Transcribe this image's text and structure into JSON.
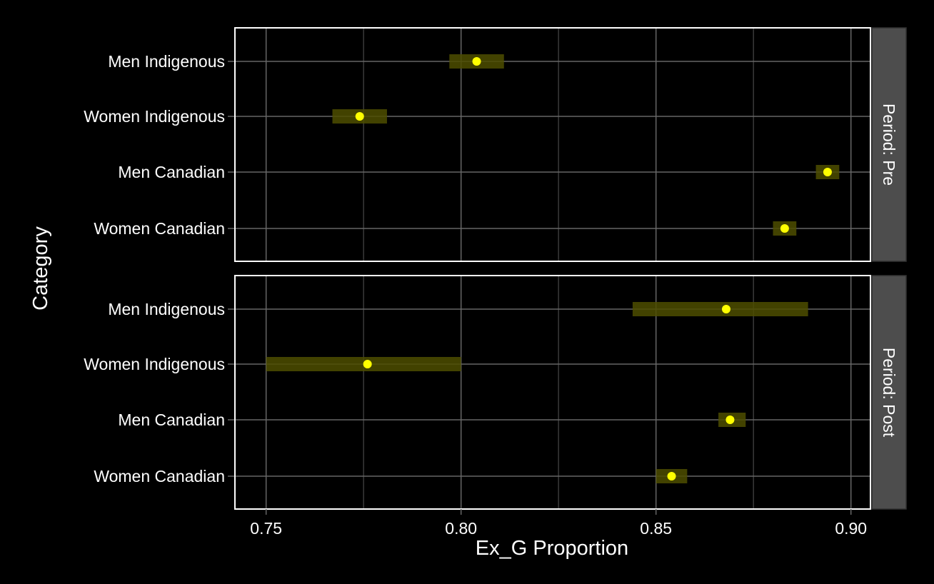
{
  "chart_data": {
    "type": "dot-interval",
    "xlabel": "Ex_G Proportion",
    "ylabel": "Category",
    "xlim": [
      0.742,
      0.905
    ],
    "x_ticks": [
      "0.75",
      "0.80",
      "0.85",
      "0.90"
    ],
    "x_tick_values": [
      0.75,
      0.8,
      0.85,
      0.9
    ],
    "x_minor_gridlines": [
      0.775,
      0.825,
      0.875
    ],
    "categories": [
      "Men Indigenous",
      "Women Indigenous",
      "Men Canadian",
      "Women Canadian"
    ],
    "grid": true,
    "colors": {
      "background": "#000000",
      "panel_border": "#ffffff",
      "grid": "#666666",
      "point": "#ffff00",
      "interval": "#4d4d00",
      "strip": "#4d4d4d"
    },
    "facets": [
      {
        "label": "Period: Pre",
        "points": [
          {
            "category": "Men Indigenous",
            "value": 0.804,
            "low": 0.797,
            "high": 0.811
          },
          {
            "category": "Women Indigenous",
            "value": 0.774,
            "low": 0.767,
            "high": 0.781
          },
          {
            "category": "Men Canadian",
            "value": 0.894,
            "low": 0.891,
            "high": 0.897
          },
          {
            "category": "Women Canadian",
            "value": 0.883,
            "low": 0.88,
            "high": 0.886
          }
        ]
      },
      {
        "label": "Period: Post",
        "points": [
          {
            "category": "Men Indigenous",
            "value": 0.868,
            "low": 0.844,
            "high": 0.889
          },
          {
            "category": "Women Indigenous",
            "value": 0.776,
            "low": 0.75,
            "high": 0.8
          },
          {
            "category": "Men Canadian",
            "value": 0.869,
            "low": 0.866,
            "high": 0.873
          },
          {
            "category": "Women Canadian",
            "value": 0.854,
            "low": 0.85,
            "high": 0.858
          }
        ]
      }
    ]
  }
}
